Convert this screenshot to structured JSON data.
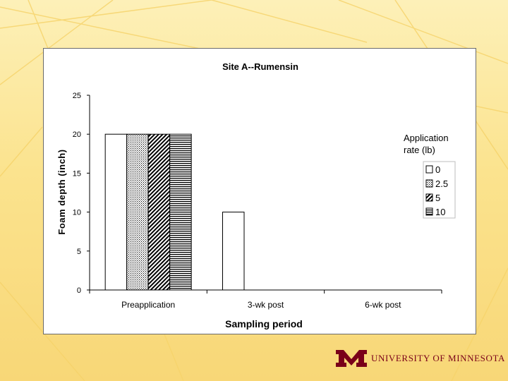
{
  "chart_data": {
    "type": "bar",
    "title": "Site A--Rumensin",
    "xlabel": "Sampling period",
    "ylabel": "Foam depth (inch)",
    "ylim": [
      0,
      25
    ],
    "yticks": [
      0,
      5,
      10,
      15,
      20,
      25
    ],
    "grid": false,
    "legend_placement": "right",
    "legend_title": "Application rate (lb)",
    "categories": [
      "Preapplication",
      "3-wk post",
      "6-wk post"
    ],
    "series": [
      {
        "name": "0",
        "values": [
          20,
          10,
          0
        ],
        "pattern": "solid-white"
      },
      {
        "name": "2.5",
        "values": [
          20,
          0,
          0
        ],
        "pattern": "dots"
      },
      {
        "name": "5",
        "values": [
          20,
          0,
          0
        ],
        "pattern": "diagonal"
      },
      {
        "name": "10",
        "values": [
          20,
          0,
          0
        ],
        "pattern": "horizontal"
      }
    ]
  },
  "colors": {
    "logo": "#7a0019",
    "axis": "#000000",
    "background": "#fbe38e"
  },
  "logo": {
    "text": "UNIVERSITY OF MINNESOTA",
    "icon": "block-m-icon"
  }
}
